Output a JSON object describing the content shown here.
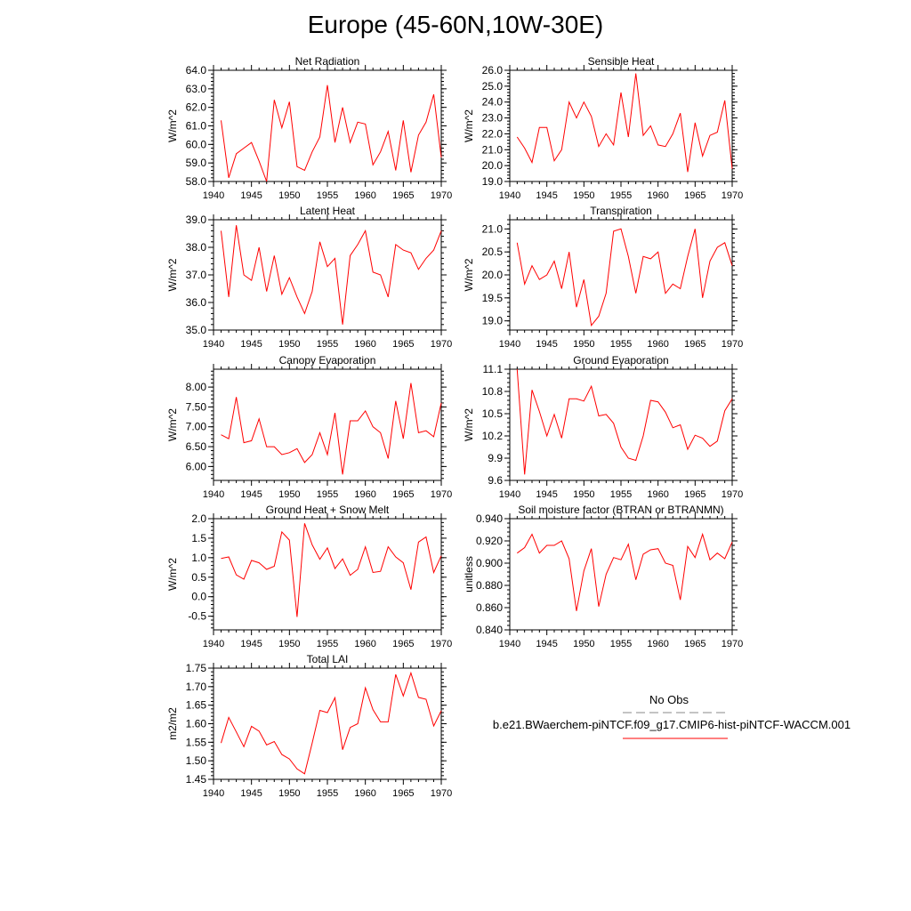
{
  "title": "Europe (45-60N,10W-30E)",
  "colors": {
    "model": "#ff0000",
    "obs": "#888888",
    "axis": "#000000"
  },
  "legend": {
    "obs_label": "No Obs",
    "run_label": "b.e21.BWaerchem-piNTCF.f09_g17.CMIP6-hist-piNTCF-WACCM.001"
  },
  "chart_data": [
    {
      "type": "line",
      "title": "Net Radiation",
      "ylabel": "W/m^2",
      "xlim": [
        1940,
        1970
      ],
      "ylim": [
        58.0,
        64.0
      ],
      "xticks": [
        1940,
        1945,
        1950,
        1955,
        1960,
        1965,
        1970
      ],
      "yticks": [
        "58.0",
        "59.0",
        "60.0",
        "61.0",
        "62.0",
        "63.0",
        "64.0"
      ],
      "x": [
        1941,
        1942,
        1943,
        1944,
        1945,
        1946,
        1947,
        1948,
        1949,
        1950,
        1951,
        1952,
        1953,
        1954,
        1955,
        1956,
        1957,
        1958,
        1959,
        1960,
        1961,
        1962,
        1963,
        1964,
        1965,
        1966,
        1967,
        1968,
        1969,
        1970
      ],
      "series": [
        {
          "values": [
            61.3,
            58.2,
            59.5,
            59.8,
            60.1,
            59.1,
            58.0,
            62.4,
            60.9,
            62.3,
            58.8,
            58.6,
            59.6,
            60.4,
            63.2,
            60.1,
            62.0,
            60.1,
            61.2,
            61.1,
            58.9,
            59.6,
            60.7,
            58.6,
            61.3,
            58.5,
            60.5,
            61.2,
            62.7,
            59.3
          ]
        }
      ]
    },
    {
      "type": "line",
      "title": "Sensible Heat",
      "ylabel": "W/m^2",
      "xlim": [
        1940,
        1970
      ],
      "ylim": [
        19.0,
        26.0
      ],
      "xticks": [
        1940,
        1945,
        1950,
        1955,
        1960,
        1965,
        1970
      ],
      "yticks": [
        "19.0",
        "20.0",
        "21.0",
        "22.0",
        "23.0",
        "24.0",
        "25.0",
        "26.0"
      ],
      "x": [
        1941,
        1942,
        1943,
        1944,
        1945,
        1946,
        1947,
        1948,
        1949,
        1950,
        1951,
        1952,
        1953,
        1954,
        1955,
        1956,
        1957,
        1958,
        1959,
        1960,
        1961,
        1962,
        1963,
        1964,
        1965,
        1966,
        1967,
        1968,
        1969,
        1970
      ],
      "series": [
        {
          "values": [
            21.8,
            21.1,
            20.2,
            22.4,
            22.4,
            20.3,
            21.0,
            24.0,
            23.0,
            24.0,
            23.1,
            21.2,
            22.0,
            21.3,
            24.6,
            21.8,
            25.8,
            21.9,
            22.5,
            21.3,
            21.2,
            22.0,
            23.3,
            19.6,
            22.7,
            20.6,
            21.9,
            22.1,
            24.1,
            19.8
          ]
        }
      ]
    },
    {
      "type": "line",
      "title": "Latent Heat",
      "ylabel": "W/m^2",
      "xlim": [
        1940,
        1970
      ],
      "ylim": [
        35.0,
        39.0
      ],
      "xticks": [
        1940,
        1945,
        1950,
        1955,
        1960,
        1965,
        1970
      ],
      "yticks": [
        "35.0",
        "36.0",
        "37.0",
        "38.0",
        "39.0"
      ],
      "x": [
        1941,
        1942,
        1943,
        1944,
        1945,
        1946,
        1947,
        1948,
        1949,
        1950,
        1951,
        1952,
        1953,
        1954,
        1955,
        1956,
        1957,
        1958,
        1959,
        1960,
        1961,
        1962,
        1963,
        1964,
        1965,
        1966,
        1967,
        1968,
        1969,
        1970
      ],
      "series": [
        {
          "values": [
            38.6,
            36.2,
            38.8,
            37.0,
            36.8,
            38.0,
            36.4,
            37.7,
            36.3,
            36.9,
            36.2,
            35.6,
            36.4,
            38.2,
            37.3,
            37.6,
            35.2,
            37.7,
            38.1,
            38.6,
            37.1,
            37.0,
            36.2,
            38.1,
            37.9,
            37.8,
            37.2,
            37.6,
            37.9,
            38.6
          ]
        }
      ]
    },
    {
      "type": "line",
      "title": "Transpiration",
      "ylabel": "W/m^2",
      "xlim": [
        1940,
        1970
      ],
      "ylim": [
        18.8,
        21.2
      ],
      "xticks": [
        1940,
        1945,
        1950,
        1955,
        1960,
        1965,
        1970
      ],
      "yticks": [
        "19.0",
        "19.5",
        "20.0",
        "20.5",
        "21.0"
      ],
      "x": [
        1941,
        1942,
        1943,
        1944,
        1945,
        1946,
        1947,
        1948,
        1949,
        1950,
        1951,
        1952,
        1953,
        1954,
        1955,
        1956,
        1957,
        1958,
        1959,
        1960,
        1961,
        1962,
        1963,
        1964,
        1965,
        1966,
        1967,
        1968,
        1969,
        1970
      ],
      "series": [
        {
          "values": [
            20.7,
            19.8,
            20.2,
            19.9,
            20.0,
            20.3,
            19.7,
            20.5,
            19.3,
            19.9,
            18.9,
            19.1,
            19.6,
            20.95,
            21.0,
            20.4,
            19.6,
            20.4,
            20.35,
            20.5,
            19.6,
            19.8,
            19.7,
            20.4,
            21.0,
            19.5,
            20.3,
            20.6,
            20.7,
            20.2
          ]
        }
      ]
    },
    {
      "type": "line",
      "title": "Canopy Evaporation",
      "ylabel": "W/m^2",
      "xlim": [
        1940,
        1970
      ],
      "ylim": [
        5.65,
        8.45
      ],
      "xticks": [
        1940,
        1945,
        1950,
        1955,
        1960,
        1965,
        1970
      ],
      "yticks": [
        "6.00",
        "6.50",
        "7.00",
        "7.50",
        "8.00"
      ],
      "x": [
        1941,
        1942,
        1943,
        1944,
        1945,
        1946,
        1947,
        1948,
        1949,
        1950,
        1951,
        1952,
        1953,
        1954,
        1955,
        1956,
        1957,
        1958,
        1959,
        1960,
        1961,
        1962,
        1963,
        1964,
        1965,
        1966,
        1967,
        1968,
        1969,
        1970
      ],
      "series": [
        {
          "values": [
            6.8,
            6.7,
            7.75,
            6.6,
            6.65,
            7.2,
            6.5,
            6.5,
            6.3,
            6.35,
            6.45,
            6.1,
            6.3,
            6.85,
            6.3,
            7.35,
            5.8,
            7.15,
            7.15,
            7.4,
            7.0,
            6.85,
            6.2,
            7.65,
            6.7,
            8.1,
            6.85,
            6.9,
            6.75,
            7.6
          ]
        }
      ]
    },
    {
      "type": "line",
      "title": "Ground Evaporation",
      "ylabel": "W/m^2",
      "xlim": [
        1940,
        1970
      ],
      "ylim": [
        9.6,
        11.1
      ],
      "xticks": [
        1940,
        1945,
        1950,
        1955,
        1960,
        1965,
        1970
      ],
      "yticks": [
        "9.6",
        "9.9",
        "10.2",
        "10.5",
        "10.8",
        "11.1"
      ],
      "x": [
        1941,
        1942,
        1943,
        1944,
        1945,
        1946,
        1947,
        1948,
        1949,
        1950,
        1951,
        1952,
        1953,
        1954,
        1955,
        1956,
        1957,
        1958,
        1959,
        1960,
        1961,
        1962,
        1963,
        1964,
        1965,
        1966,
        1967,
        1968,
        1969,
        1970
      ],
      "series": [
        {
          "values": [
            11.1,
            9.68,
            10.82,
            10.53,
            10.2,
            10.49,
            10.17,
            10.7,
            10.7,
            10.67,
            10.87,
            10.47,
            10.49,
            10.37,
            10.05,
            9.9,
            9.87,
            10.2,
            10.68,
            10.66,
            10.52,
            10.31,
            10.35,
            10.02,
            10.21,
            10.17,
            10.06,
            10.13,
            10.54,
            10.7
          ]
        }
      ]
    },
    {
      "type": "line",
      "title": "Ground Heat + Snow Melt",
      "ylabel": "W/m^2",
      "xlim": [
        1940,
        1970
      ],
      "ylim": [
        -0.85,
        2.0
      ],
      "xticks": [
        1940,
        1945,
        1950,
        1955,
        1960,
        1965,
        1970
      ],
      "yticks": [
        "-0.5",
        "0.0",
        "0.5",
        "1.0",
        "1.5",
        "2.0"
      ],
      "x": [
        1941,
        1942,
        1943,
        1944,
        1945,
        1946,
        1947,
        1948,
        1949,
        1950,
        1951,
        1952,
        1953,
        1954,
        1955,
        1956,
        1957,
        1958,
        1959,
        1960,
        1961,
        1962,
        1963,
        1964,
        1965,
        1966,
        1967,
        1968,
        1969,
        1970
      ],
      "series": [
        {
          "values": [
            0.98,
            1.02,
            0.56,
            0.45,
            0.93,
            0.87,
            0.7,
            0.78,
            1.66,
            1.45,
            -0.52,
            1.88,
            1.33,
            0.96,
            1.25,
            0.72,
            0.97,
            0.55,
            0.7,
            1.28,
            0.62,
            0.65,
            1.28,
            1.02,
            0.87,
            0.18,
            1.4,
            1.53,
            0.62,
            1.05
          ]
        }
      ]
    },
    {
      "type": "line",
      "title": "Soil moisture factor (BTRAN or BTRANMN)",
      "ylabel": "unitless",
      "xlim": [
        1940,
        1970
      ],
      "ylim": [
        0.84,
        0.94
      ],
      "xticks": [
        1940,
        1945,
        1950,
        1955,
        1960,
        1965,
        1970
      ],
      "yticks": [
        "0.840",
        "0.860",
        "0.880",
        "0.900",
        "0.920",
        "0.940"
      ],
      "x": [
        1941,
        1942,
        1943,
        1944,
        1945,
        1946,
        1947,
        1948,
        1949,
        1950,
        1951,
        1952,
        1953,
        1954,
        1955,
        1956,
        1957,
        1958,
        1959,
        1960,
        1961,
        1962,
        1963,
        1964,
        1965,
        1966,
        1967,
        1968,
        1969,
        1970
      ],
      "series": [
        {
          "values": [
            0.909,
            0.914,
            0.926,
            0.909,
            0.916,
            0.916,
            0.92,
            0.904,
            0.857,
            0.893,
            0.913,
            0.861,
            0.89,
            0.905,
            0.903,
            0.917,
            0.885,
            0.908,
            0.912,
            0.913,
            0.9,
            0.898,
            0.867,
            0.915,
            0.905,
            0.926,
            0.903,
            0.909,
            0.904,
            0.919
          ]
        }
      ]
    },
    {
      "type": "line",
      "title": "Total LAI",
      "ylabel": "m2/m2",
      "xlim": [
        1940,
        1970
      ],
      "ylim": [
        1.45,
        1.75
      ],
      "xticks": [
        1940,
        1945,
        1950,
        1955,
        1960,
        1965,
        1970
      ],
      "yticks": [
        "1.45",
        "1.50",
        "1.55",
        "1.60",
        "1.65",
        "1.70",
        "1.75"
      ],
      "x": [
        1941,
        1942,
        1943,
        1944,
        1945,
        1946,
        1947,
        1948,
        1949,
        1950,
        1951,
        1952,
        1953,
        1954,
        1955,
        1956,
        1957,
        1958,
        1959,
        1960,
        1961,
        1962,
        1963,
        1964,
        1965,
        1966,
        1967,
        1968,
        1969,
        1970
      ],
      "series": [
        {
          "values": [
            1.548,
            1.617,
            1.578,
            1.538,
            1.593,
            1.58,
            1.543,
            1.552,
            1.517,
            1.505,
            1.478,
            1.465,
            1.548,
            1.636,
            1.63,
            1.67,
            1.53,
            1.59,
            1.6,
            1.697,
            1.638,
            1.605,
            1.605,
            1.733,
            1.675,
            1.737,
            1.671,
            1.666,
            1.594,
            1.635
          ]
        }
      ]
    }
  ]
}
